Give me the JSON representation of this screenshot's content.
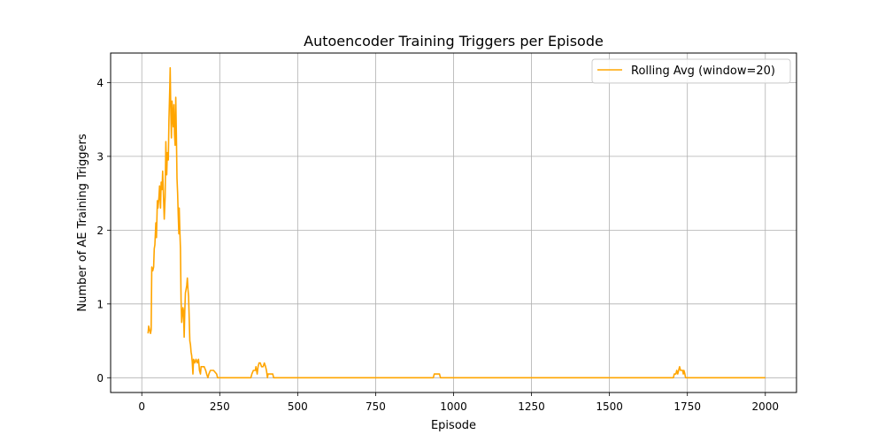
{
  "chart_data": {
    "type": "line",
    "title": "Autoencoder Training Triggers per Episode",
    "xlabel": "Episode",
    "ylabel": "Number of AE Training Triggers",
    "xlim": [
      -100,
      2100
    ],
    "ylim": [
      -0.2,
      4.4
    ],
    "x_ticks": [
      0,
      250,
      500,
      750,
      1000,
      1250,
      1500,
      1750,
      2000
    ],
    "y_ticks": [
      0,
      1,
      2,
      3,
      4
    ],
    "grid": true,
    "legend_position": "top-right",
    "series": [
      {
        "name": "Rolling Avg (window=20)",
        "color": "#ffa500",
        "points": [
          [
            20,
            0.6
          ],
          [
            22,
            0.7
          ],
          [
            25,
            0.65
          ],
          [
            28,
            0.6
          ],
          [
            30,
            0.65
          ],
          [
            32,
            1.5
          ],
          [
            35,
            1.45
          ],
          [
            38,
            1.5
          ],
          [
            40,
            1.75
          ],
          [
            42,
            1.8
          ],
          [
            45,
            2.1
          ],
          [
            47,
            1.9
          ],
          [
            50,
            2.4
          ],
          [
            52,
            2.3
          ],
          [
            55,
            2.45
          ],
          [
            57,
            2.6
          ],
          [
            60,
            2.3
          ],
          [
            62,
            2.65
          ],
          [
            65,
            2.55
          ],
          [
            67,
            2.8
          ],
          [
            70,
            2.4
          ],
          [
            72,
            2.15
          ],
          [
            75,
            2.45
          ],
          [
            77,
            3.2
          ],
          [
            80,
            2.75
          ],
          [
            82,
            3.05
          ],
          [
            85,
            2.95
          ],
          [
            87,
            3.5
          ],
          [
            90,
            3.95
          ],
          [
            91,
            4.2
          ],
          [
            93,
            3.6
          ],
          [
            95,
            3.25
          ],
          [
            97,
            3.75
          ],
          [
            99,
            3.55
          ],
          [
            101,
            3.4
          ],
          [
            103,
            3.7
          ],
          [
            105,
            3.3
          ],
          [
            107,
            3.15
          ],
          [
            109,
            3.8
          ],
          [
            111,
            3.3
          ],
          [
            113,
            2.7
          ],
          [
            115,
            2.5
          ],
          [
            117,
            2.2
          ],
          [
            119,
            1.95
          ],
          [
            120,
            2.3
          ],
          [
            122,
            2.0
          ],
          [
            124,
            1.75
          ],
          [
            126,
            1.05
          ],
          [
            128,
            0.75
          ],
          [
            130,
            0.85
          ],
          [
            132,
            0.95
          ],
          [
            134,
            0.9
          ],
          [
            136,
            0.55
          ],
          [
            138,
            0.9
          ],
          [
            140,
            1.15
          ],
          [
            142,
            1.2
          ],
          [
            144,
            1.25
          ],
          [
            146,
            1.35
          ],
          [
            148,
            1.2
          ],
          [
            150,
            1.1
          ],
          [
            152,
            0.8
          ],
          [
            154,
            0.5
          ],
          [
            156,
            0.45
          ],
          [
            158,
            0.35
          ],
          [
            160,
            0.3
          ],
          [
            162,
            0.2
          ],
          [
            164,
            0.05
          ],
          [
            166,
            0.25
          ],
          [
            170,
            0.2
          ],
          [
            174,
            0.25
          ],
          [
            178,
            0.2
          ],
          [
            182,
            0.25
          ],
          [
            185,
            0.1
          ],
          [
            188,
            0.05
          ],
          [
            190,
            0.15
          ],
          [
            195,
            0.15
          ],
          [
            200,
            0.15
          ],
          [
            205,
            0.1
          ],
          [
            208,
            0.05
          ],
          [
            212,
            0.0
          ],
          [
            215,
            0.05
          ],
          [
            220,
            0.1
          ],
          [
            230,
            0.1
          ],
          [
            240,
            0.05
          ],
          [
            243,
            0.0
          ],
          [
            350,
            0.0
          ],
          [
            353,
            0.05
          ],
          [
            358,
            0.1
          ],
          [
            364,
            0.1
          ],
          [
            366,
            0.15
          ],
          [
            368,
            0.1
          ],
          [
            370,
            0.05
          ],
          [
            373,
            0.15
          ],
          [
            376,
            0.2
          ],
          [
            380,
            0.2
          ],
          [
            384,
            0.15
          ],
          [
            389,
            0.15
          ],
          [
            393,
            0.2
          ],
          [
            397,
            0.15
          ],
          [
            400,
            0.1
          ],
          [
            403,
            0.0
          ],
          [
            405,
            0.05
          ],
          [
            415,
            0.05
          ],
          [
            420,
            0.05
          ],
          [
            423,
            0.0
          ],
          [
            935,
            0.0
          ],
          [
            938,
            0.05
          ],
          [
            955,
            0.05
          ],
          [
            958,
            0.0
          ],
          [
            1705,
            0.0
          ],
          [
            1708,
            0.05
          ],
          [
            1713,
            0.05
          ],
          [
            1716,
            0.1
          ],
          [
            1719,
            0.05
          ],
          [
            1722,
            0.1
          ],
          [
            1725,
            0.15
          ],
          [
            1728,
            0.1
          ],
          [
            1735,
            0.1
          ],
          [
            1737,
            0.05
          ],
          [
            1739,
            0.1
          ],
          [
            1742,
            0.05
          ],
          [
            1744,
            0.0
          ],
          [
            2000,
            0.0
          ]
        ]
      }
    ]
  }
}
